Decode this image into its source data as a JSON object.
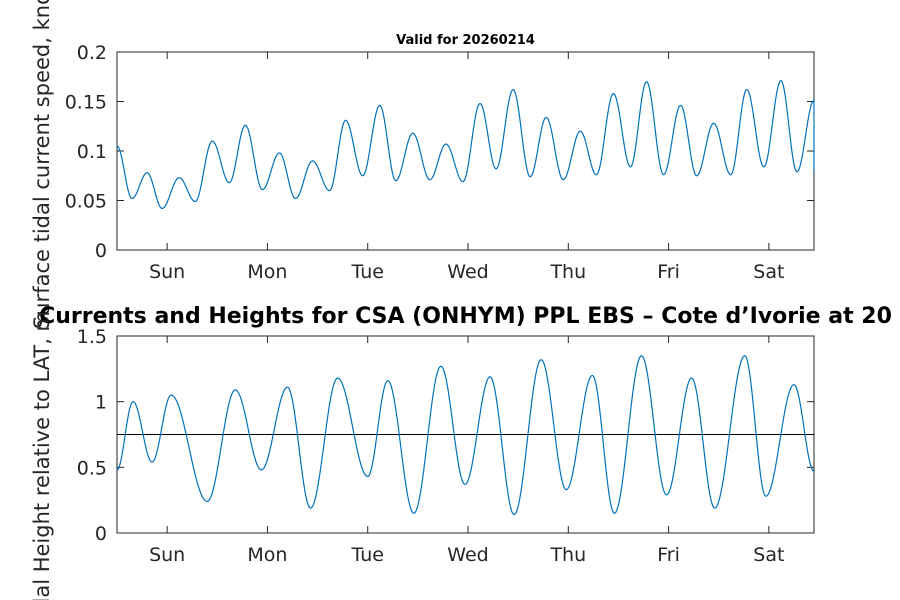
{
  "chart_data": [
    {
      "type": "line",
      "title": "Valid for 20260214",
      "ylabel": "Surface tidal current speed, knots",
      "xlabel": "",
      "x_tick_labels": [
        "Sun",
        "Mon",
        "Tue",
        "Wed",
        "Thu",
        "Fri",
        "Sat"
      ],
      "ylim": [
        0,
        0.2
      ],
      "y_ticks": [
        0,
        0.05,
        0.1,
        0.15,
        0.2
      ],
      "y_tick_labels": [
        "0",
        "0.05",
        "0.1",
        "0.15",
        "0.2"
      ],
      "series": [
        {
          "name": "Surface tidal current speed",
          "color": "#0072BD",
          "x_days": [
            -0.5,
            -0.35,
            -0.2,
            -0.05,
            0.12,
            0.28,
            0.45,
            0.62,
            0.78,
            0.95,
            1.12,
            1.28,
            1.45,
            1.62,
            1.78,
            1.95,
            2.12,
            2.28,
            2.45,
            2.62,
            2.78,
            2.95,
            3.12,
            3.28,
            3.45,
            3.62,
            3.78,
            3.95,
            4.12,
            4.28,
            4.45,
            4.62,
            4.78,
            4.95,
            5.12,
            5.28,
            5.45,
            5.62,
            5.78,
            5.95,
            6.12,
            6.28,
            6.45,
            6.45
          ],
          "values": [
            0.105,
            0.052,
            0.078,
            0.042,
            0.073,
            0.049,
            0.11,
            0.068,
            0.126,
            0.061,
            0.098,
            0.052,
            0.09,
            0.06,
            0.131,
            0.075,
            0.146,
            0.07,
            0.118,
            0.071,
            0.107,
            0.069,
            0.148,
            0.082,
            0.162,
            0.074,
            0.134,
            0.071,
            0.12,
            0.076,
            0.158,
            0.084,
            0.17,
            0.076,
            0.146,
            0.075,
            0.128,
            0.076,
            0.162,
            0.084,
            0.171,
            0.079,
            0.151,
            0.078
          ]
        }
      ]
    },
    {
      "type": "line",
      "title": "Currents and Heights for CSA (ONHYM) PPL EBS  – Cote d’Ivorie at 20",
      "ylabel": "Tidal Height relative to LAT, m",
      "xlabel": "",
      "x_tick_labels": [
        "Sun",
        "Mon",
        "Tue",
        "Wed",
        "Thu",
        "Fri",
        "Sat"
      ],
      "ylim": [
        0,
        1.5
      ],
      "y_ticks": [
        0,
        0.5,
        1,
        1.5
      ],
      "y_tick_labels": [
        "0",
        "0.5",
        "1",
        "1.5"
      ],
      "reference_line": 0.75,
      "series": [
        {
          "name": "Tidal height",
          "color": "#0072BD",
          "x_days": [
            -0.5,
            -0.34,
            -0.15,
            0.04,
            0.4,
            0.68,
            0.94,
            1.2,
            1.43,
            1.7,
            2.0,
            2.2,
            2.46,
            2.73,
            2.97,
            3.22,
            3.46,
            3.73,
            3.98,
            4.24,
            4.46,
            4.73,
            4.98,
            5.23,
            5.46,
            5.76,
            5.97,
            6.25,
            6.45
          ],
          "values": [
            0.48,
            1.0,
            0.54,
            1.05,
            0.24,
            1.09,
            0.48,
            1.11,
            0.19,
            1.18,
            0.43,
            1.16,
            0.15,
            1.27,
            0.37,
            1.19,
            0.14,
            1.32,
            0.33,
            1.2,
            0.15,
            1.35,
            0.29,
            1.18,
            0.19,
            1.35,
            0.28,
            1.13,
            0.47
          ]
        }
      ]
    }
  ]
}
